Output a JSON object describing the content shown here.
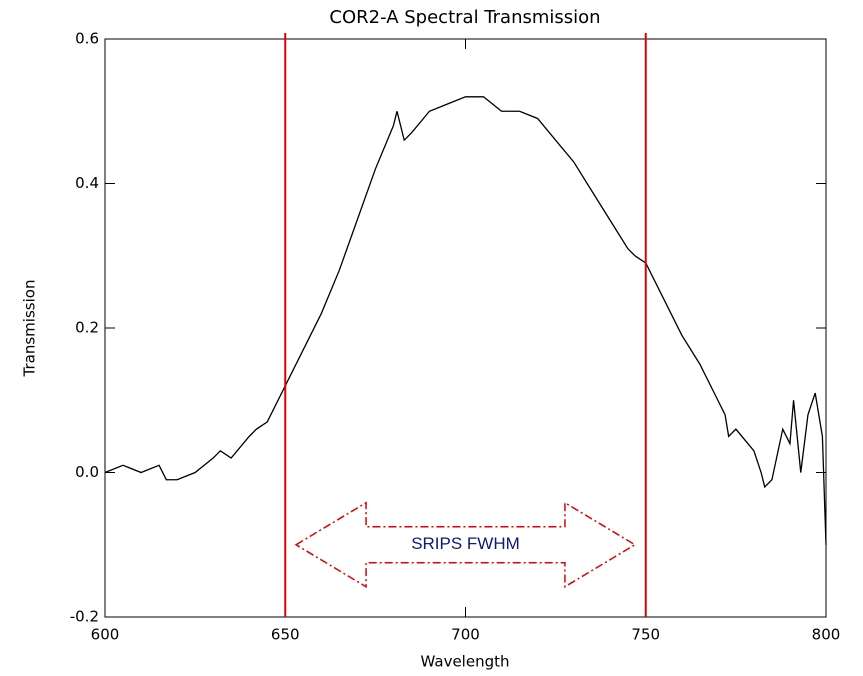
{
  "chart_data": {
    "type": "line",
    "title": "COR2-A Spectral Transmission",
    "xlabel": "Wavelength",
    "ylabel": "Transmission",
    "xlim": [
      600,
      800
    ],
    "ylim": [
      -0.2,
      0.6
    ],
    "xticks": [
      600,
      650,
      700,
      750,
      800
    ],
    "yticks": [
      -0.2,
      {
        "value": 0,
        "label": "0.0"
      },
      0.2,
      0.4,
      0.6
    ],
    "series": [
      {
        "color": "#000000",
        "x": [
          600,
          605,
          610,
          615,
          617,
          620,
          625,
          630,
          632,
          635,
          640,
          642,
          645,
          650,
          655,
          660,
          665,
          670,
          675,
          680,
          681,
          683,
          685,
          690,
          695,
          700,
          705,
          710,
          715,
          720,
          725,
          730,
          735,
          740,
          745,
          747,
          750,
          755,
          760,
          765,
          770,
          772,
          773,
          775,
          780,
          782,
          783,
          785,
          788,
          790,
          791,
          793,
          795,
          797,
          799,
          800
        ],
        "values": [
          0.0,
          0.01,
          0.0,
          0.01,
          -0.01,
          -0.01,
          0.0,
          0.02,
          0.03,
          0.02,
          0.05,
          0.06,
          0.07,
          0.12,
          0.17,
          0.22,
          0.28,
          0.35,
          0.42,
          0.48,
          0.5,
          0.46,
          0.47,
          0.5,
          0.51,
          0.52,
          0.52,
          0.5,
          0.5,
          0.49,
          0.46,
          0.43,
          0.39,
          0.35,
          0.31,
          0.3,
          0.29,
          0.24,
          0.19,
          0.15,
          0.1,
          0.08,
          0.05,
          0.06,
          0.03,
          0.0,
          -0.02,
          -0.01,
          0.06,
          0.04,
          0.1,
          0.0,
          0.08,
          0.11,
          0.05,
          -0.1
        ]
      }
    ],
    "vlines": {
      "values": [
        650,
        750
      ],
      "color": "#e00000"
    },
    "arrow": {
      "text": "SRIPS FWHM",
      "x": [
        653,
        747
      ],
      "y": -0.1,
      "color": "#e00000"
    }
  }
}
